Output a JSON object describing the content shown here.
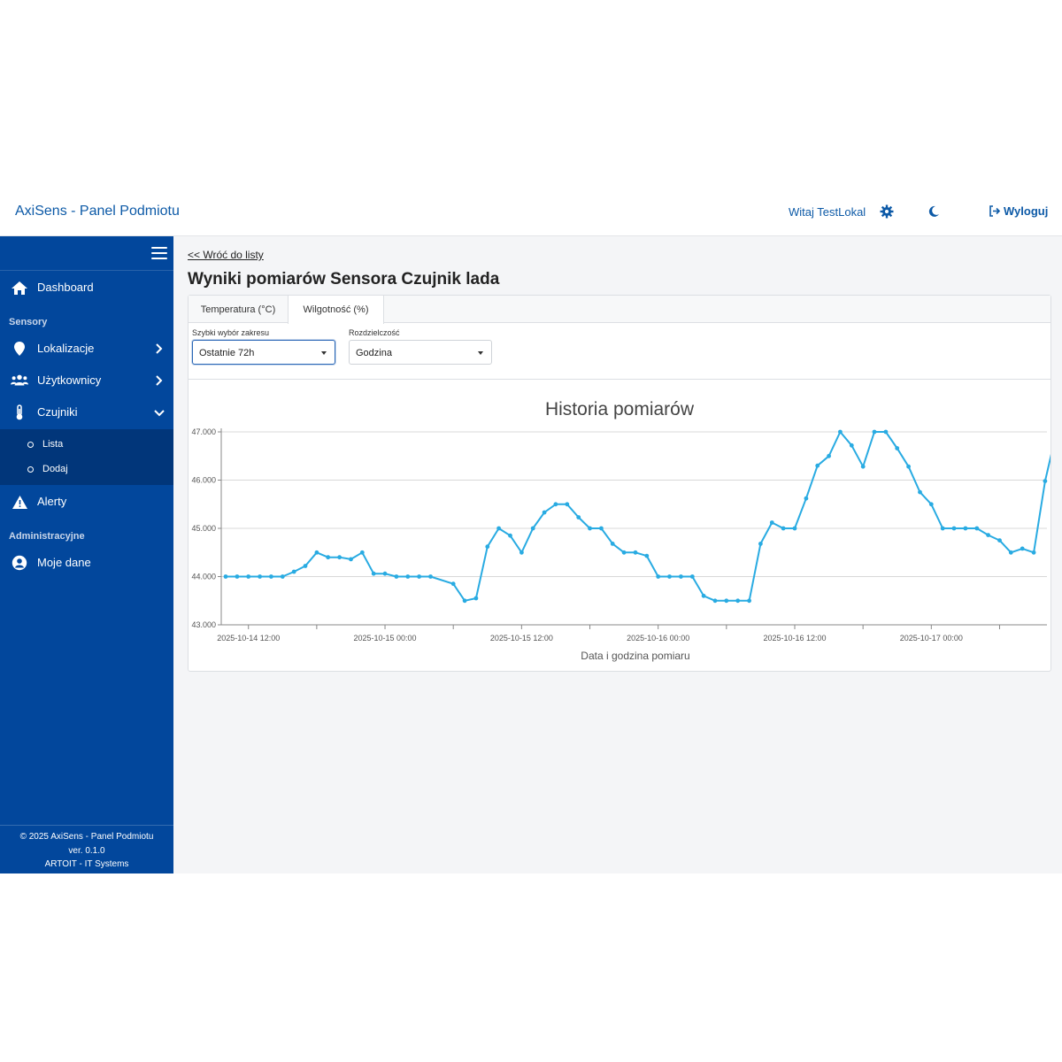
{
  "header": {
    "brand": "AxiSens - Panel Podmiotu",
    "greeting": "Witaj TestLokal",
    "logout_label": "Wyloguj",
    "icons": [
      "gear-icon",
      "moon-icon",
      "logout-icon"
    ]
  },
  "sidebar": {
    "items": [
      {
        "label": "Dashboard",
        "icon": "home-icon"
      },
      {
        "label": "Lokalizacje",
        "icon": "map-pin-icon"
      },
      {
        "label": "Użytkownicy",
        "icon": "users-icon"
      },
      {
        "label": "Czujniki",
        "icon": "thermometer-icon"
      },
      {
        "label": "Alerty",
        "icon": "warning-icon"
      },
      {
        "label": "Moje dane",
        "icon": "user-circle-icon"
      }
    ],
    "sections": {
      "sensors": "Sensory",
      "admin": "Administracyjne"
    },
    "subitems": [
      {
        "label": "Lista"
      },
      {
        "label": "Dodaj"
      }
    ],
    "footer": {
      "line1": "© 2025 AxiSens - Panel Podmiotu",
      "line2": "ver. 0.1.0",
      "line3": "ARTOIT - IT Systems"
    }
  },
  "main": {
    "back_link": "<< Wróć do listy",
    "title": "Wyniki pomiarów Sensora Czujnik lada",
    "tabs": [
      {
        "label": "Temperatura (°C)"
      },
      {
        "label": "Wilgotność (%)",
        "active": true
      }
    ],
    "range": {
      "label": "Szybki wybór zakresu",
      "value": "Ostatnie 72h"
    },
    "resolution": {
      "label": "Rozdzielczość",
      "value": "Godzina"
    }
  },
  "colors": {
    "primary": "#02479c",
    "accent": "#0d5aa7",
    "line": "#29abe2"
  },
  "chart_data": {
    "type": "line",
    "title": "Historia pomiarów",
    "xlabel": "Data i godzina pomiaru",
    "ylabel": "",
    "ylim": [
      43,
      47
    ],
    "yticks": [
      "43.000",
      "44.000",
      "45.000",
      "46.000",
      "47.000"
    ],
    "xticks": [
      "2025-10-14 12:00",
      "2025-10-15 00:00",
      "2025-10-15 12:00",
      "2025-10-16 00:00",
      "2025-10-16 12:00",
      "2025-10-17 00:00"
    ],
    "x_start": "2025-10-14 10:00",
    "x_step_hours": 1,
    "grid": true,
    "series": [
      {
        "values": [
          44.0,
          44.0,
          44.0,
          44.0,
          44.0,
          44.0,
          44.1,
          44.22,
          44.5,
          44.4,
          44.4,
          44.36,
          44.5,
          44.06,
          44.06,
          44.0,
          44.0,
          44.0,
          44.0,
          null,
          43.85,
          43.5,
          43.55,
          44.62,
          45.0,
          44.85,
          44.5,
          45.0,
          45.33,
          45.5,
          45.5,
          45.23,
          45.0,
          45.0,
          44.68,
          44.5,
          44.5,
          44.43,
          44.0,
          44.0,
          44.0,
          44.0,
          43.6,
          43.5,
          43.5,
          43.5,
          43.5,
          44.68,
          45.12,
          45.0,
          45.0,
          45.62,
          46.3,
          46.5,
          47.0,
          46.72,
          46.28,
          47.0,
          47.0,
          46.66,
          46.28,
          45.75,
          45.5,
          45.0,
          45.0,
          45.0,
          45.0,
          44.86,
          44.75,
          44.5,
          44.58,
          44.5,
          45.98,
          47.0
        ]
      }
    ]
  }
}
